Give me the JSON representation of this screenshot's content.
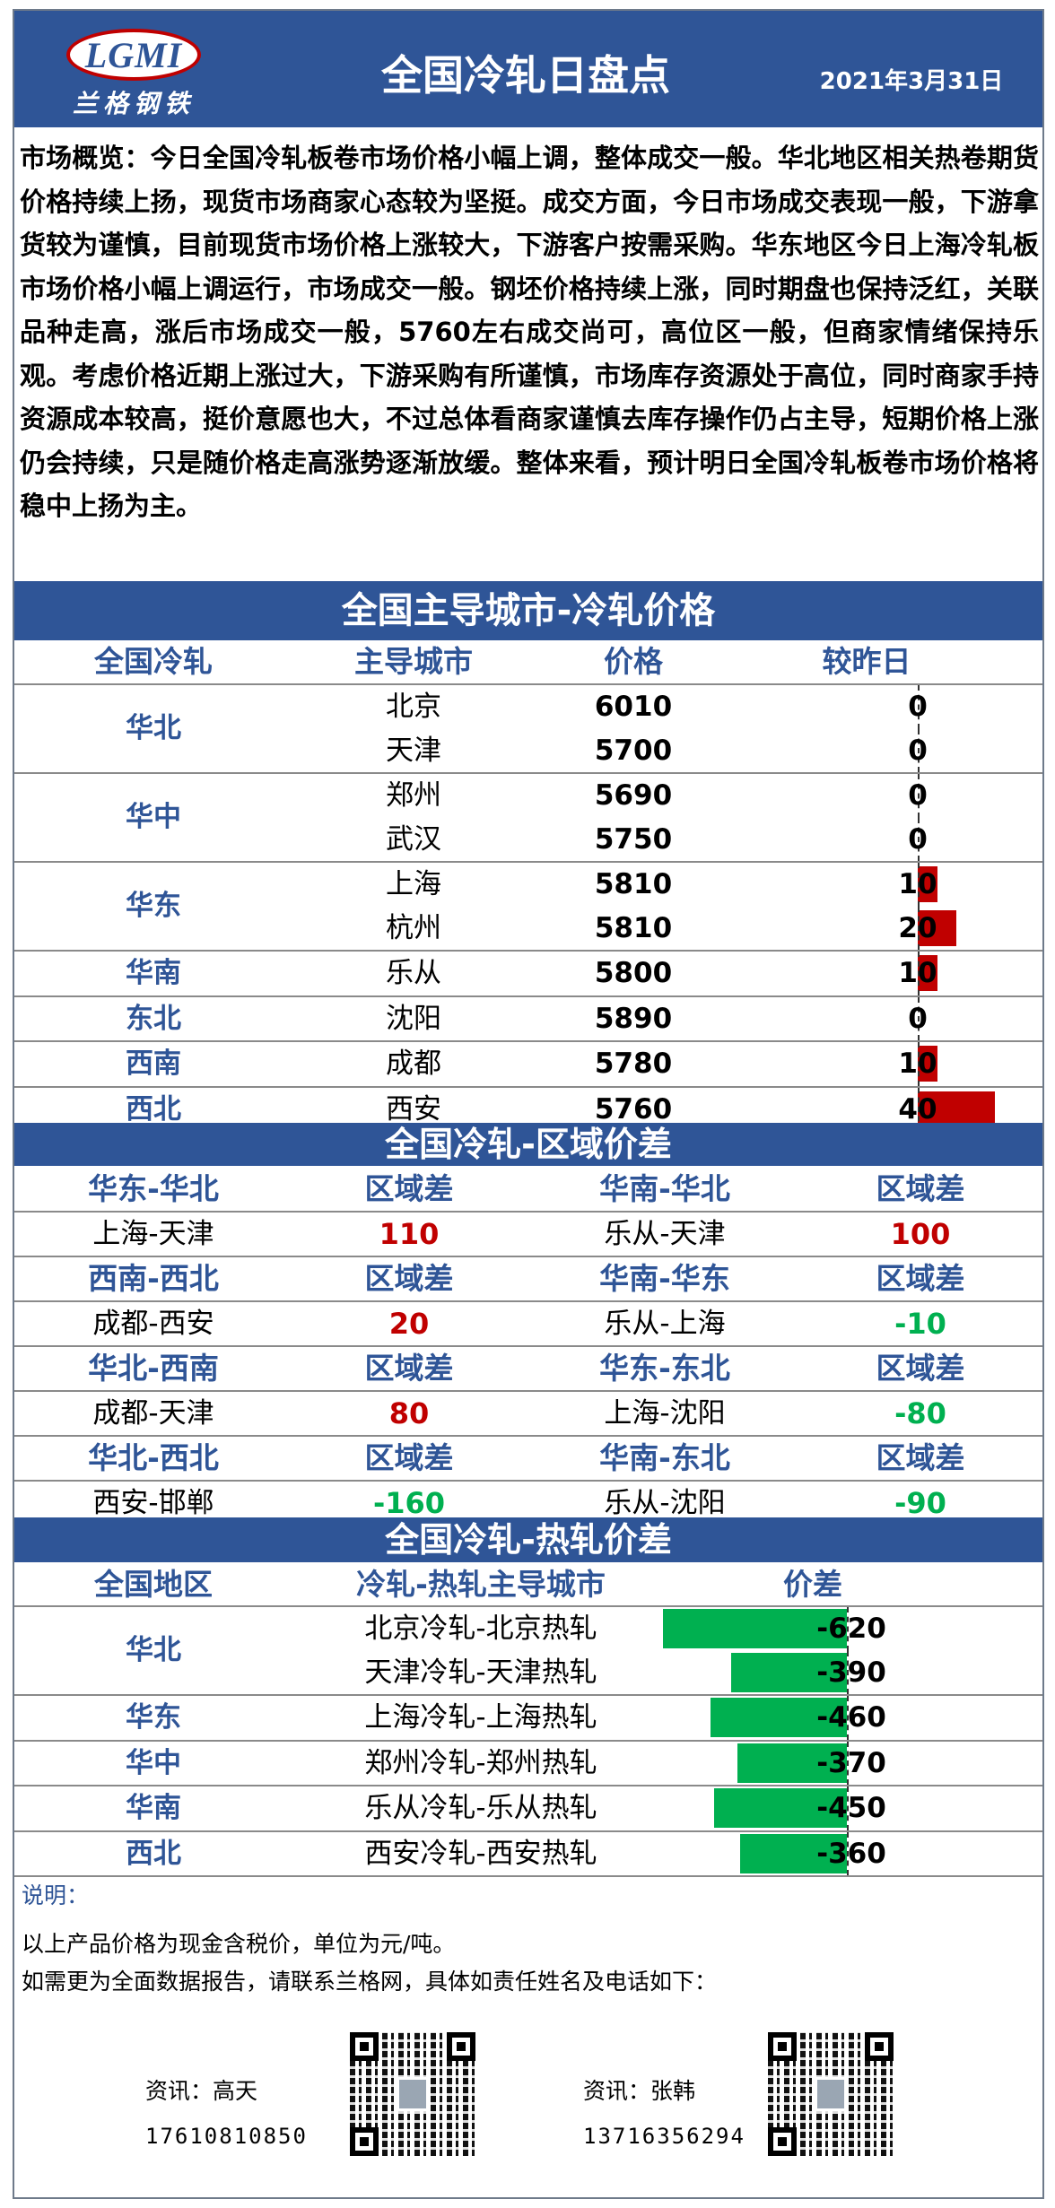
{
  "header": {
    "logo_mark": "LGMI",
    "logo_sub": "兰格钢铁",
    "title": "全国冷轧日盘点",
    "date": "2021年3月31日"
  },
  "overview": "市场概览：今日全国冷轧板卷市场价格小幅上调，整体成交一般。华北地区相关热卷期货价格持续上扬，现货市场商家心态较为坚挺。成交方面，今日市场成交表现一般，下游拿货较为谨慎，目前现货市场价格上涨较大，下游客户按需采购。华东地区今日上海冷轧板市场价格小幅上调运行，市场成交一般。钢坯价格持续上涨，同时期盘也保持泛红，关联品种走高，涨后市场成交一般，5760左右成交尚可，高位区一般，但商家情绪保持乐观。考虑价格近期上涨过大，下游采购有所谨慎，市场库存资源处于高位，同时商家手持资源成本较高，挺价意愿也大，不过总体看商家谨慎去库存操作仍占主导，短期价格上涨仍会持续，只是随价格走高涨势逐渐放缓。整体来看，预计明日全国冷轧板卷市场价格将稳中上扬为主。",
  "price_table": {
    "title": "全国主导城市-冷轧价格",
    "headers": [
      "全国冷轧",
      "主导城市",
      "价格",
      "较昨日"
    ],
    "groups": [
      {
        "region": "华北",
        "rows": [
          {
            "city": "北京",
            "price": "6010",
            "change": 0
          },
          {
            "city": "天津",
            "price": "5700",
            "change": 0
          }
        ]
      },
      {
        "region": "华中",
        "rows": [
          {
            "city": "郑州",
            "price": "5690",
            "change": 0
          },
          {
            "city": "武汉",
            "price": "5750",
            "change": 0
          }
        ]
      },
      {
        "region": "华东",
        "rows": [
          {
            "city": "上海",
            "price": "5810",
            "change": 10
          },
          {
            "city": "杭州",
            "price": "5810",
            "change": 20
          }
        ]
      },
      {
        "region": "华南",
        "rows": [
          {
            "city": "乐从",
            "price": "5800",
            "change": 10
          }
        ]
      },
      {
        "region": "东北",
        "rows": [
          {
            "city": "沈阳",
            "price": "5890",
            "change": 0
          }
        ]
      },
      {
        "region": "西南",
        "rows": [
          {
            "city": "成都",
            "price": "5780",
            "change": 10
          }
        ]
      },
      {
        "region": "西北",
        "rows": [
          {
            "city": "西安",
            "price": "5760",
            "change": 40
          }
        ]
      }
    ],
    "colors": {
      "up": "#c00000"
    }
  },
  "region_spread": {
    "title": "全国冷轧-区域价差",
    "blocks": [
      {
        "left": {
          "pair": "华东-华北",
          "label": "区域差",
          "cities": "上海-天津",
          "value": "110",
          "sign": "pos"
        },
        "right": {
          "pair": "华南-华北",
          "label": "区域差",
          "cities": "乐从-天津",
          "value": "100",
          "sign": "pos"
        }
      },
      {
        "left": {
          "pair": "西南-西北",
          "label": "区域差",
          "cities": "成都-西安",
          "value": "20",
          "sign": "pos"
        },
        "right": {
          "pair": "华南-华东",
          "label": "区域差",
          "cities": "乐从-上海",
          "value": "-10",
          "sign": "neg"
        }
      },
      {
        "left": {
          "pair": "华北-西南",
          "label": "区域差",
          "cities": "成都-天津",
          "value": "80",
          "sign": "pos"
        },
        "right": {
          "pair": "华东-东北",
          "label": "区域差",
          "cities": "上海-沈阳",
          "value": "-80",
          "sign": "neg"
        }
      },
      {
        "left": {
          "pair": "华北-西北",
          "label": "区域差",
          "cities": "西安-邯郸",
          "value": "-160",
          "sign": "neg"
        },
        "right": {
          "pair": "华南-东北",
          "label": "区域差",
          "cities": "乐从-沈阳",
          "value": "-90",
          "sign": "neg"
        }
      }
    ]
  },
  "hot_spread": {
    "title": "全国冷轧-热轧价差",
    "headers": [
      "全国地区",
      "冷轧-热轧主导城市",
      "价差"
    ],
    "groups": [
      {
        "region": "华北",
        "rows": [
          {
            "pair": "北京冷轧-北京热轧",
            "value": -620
          },
          {
            "pair": "天津冷轧-天津热轧",
            "value": -390
          }
        ]
      },
      {
        "region": "华东",
        "rows": [
          {
            "pair": "上海冷轧-上海热轧",
            "value": -460
          }
        ]
      },
      {
        "region": "华中",
        "rows": [
          {
            "pair": "郑州冷轧-郑州热轧",
            "value": -370
          }
        ]
      },
      {
        "region": "华南",
        "rows": [
          {
            "pair": "乐从冷轧-乐从热轧",
            "value": -450
          }
        ]
      },
      {
        "region": "西北",
        "rows": [
          {
            "pair": "西安冷轧-西安热轧",
            "value": -360
          }
        ]
      }
    ],
    "colors": {
      "down": "#00b050"
    }
  },
  "notes": {
    "title": "说明：",
    "line1": "以上产品价格为现金含税价，单位为元/吨。",
    "line2": "如需更为全面数据报告，请联系兰格网，具体如责任姓名及电话如下："
  },
  "contacts": [
    {
      "name": "资讯：高天",
      "phone": "17610810850",
      "qr_icon": "qr-code-icon"
    },
    {
      "name": "资讯：张韩",
      "phone": "13716356294",
      "qr_icon": "qr-code-icon"
    }
  ]
}
